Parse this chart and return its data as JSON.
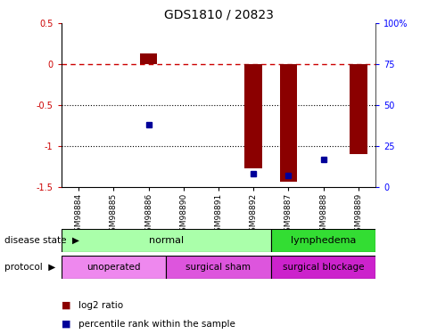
{
  "title": "GDS1810 / 20823",
  "samples": [
    "GSM98884",
    "GSM98885",
    "GSM98886",
    "GSM98890",
    "GSM98891",
    "GSM98892",
    "GSM98887",
    "GSM98888",
    "GSM98889"
  ],
  "log2_ratio": [
    0.0,
    0.0,
    0.13,
    0.0,
    0.0,
    -1.27,
    -1.43,
    0.0,
    -1.1
  ],
  "percentile_rank": [
    null,
    null,
    38,
    null,
    null,
    8,
    7,
    17,
    null
  ],
  "ylim_left": [
    -1.5,
    0.5
  ],
  "ylim_right": [
    0,
    100
  ],
  "right_ticks": [
    0,
    25,
    50,
    75,
    100
  ],
  "right_tick_labels": [
    "0",
    "25",
    "50",
    "75",
    "100%"
  ],
  "left_ticks": [
    -1.5,
    -1.0,
    -0.5,
    0.0,
    0.5
  ],
  "left_tick_labels": [
    "-1.5",
    "-1",
    "-0.5",
    "0",
    "0.5"
  ],
  "disease_state": [
    {
      "label": "normal",
      "start": 0,
      "end": 6,
      "color": "#aaffaa"
    },
    {
      "label": "lymphedema",
      "start": 6,
      "end": 9,
      "color": "#33dd33"
    }
  ],
  "protocol": [
    {
      "label": "unoperated",
      "start": 0,
      "end": 3,
      "color": "#ee88ee"
    },
    {
      "label": "surgical sham",
      "start": 3,
      "end": 6,
      "color": "#dd55dd"
    },
    {
      "label": "surgical blockage",
      "start": 6,
      "end": 9,
      "color": "#cc22cc"
    }
  ],
  "bar_color": "#8B0000",
  "point_color": "#000099",
  "ref_line_color": "#CC0000",
  "grid_color": "#000000"
}
